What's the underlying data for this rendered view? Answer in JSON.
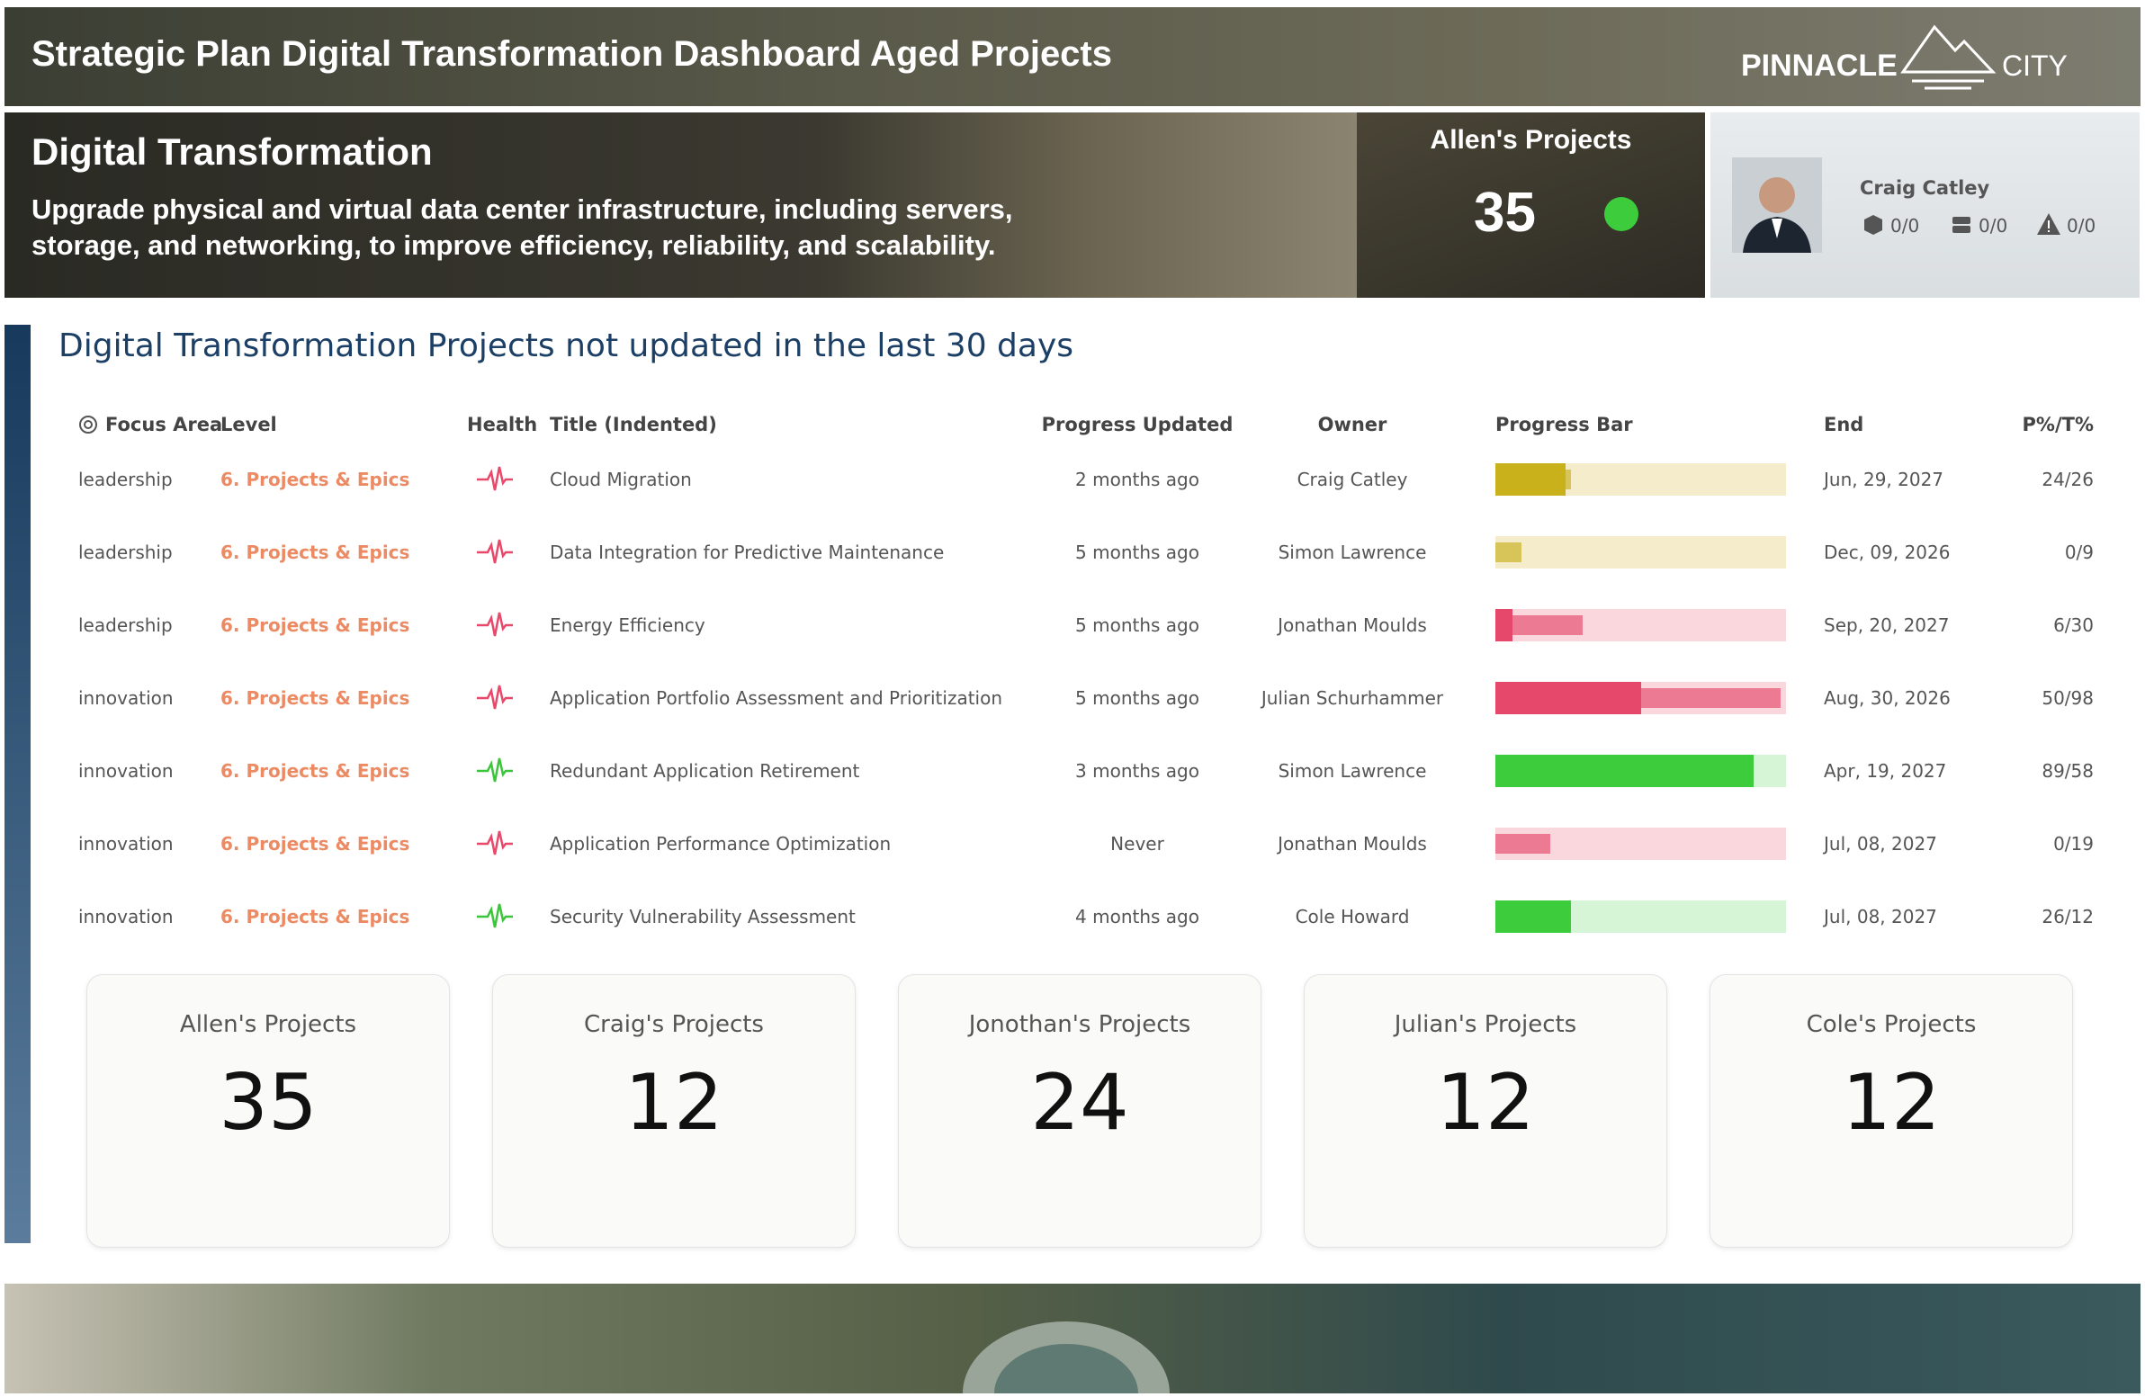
{
  "header": {
    "title": "Strategic Plan Digital Transformation Dashboard Aged Projects",
    "logo_main": "PINNACLE",
    "logo_sub": "CITY"
  },
  "banner": {
    "title": "Digital Transformation",
    "description": "Upgrade physical and virtual data center infrastructure, including servers, storage, and networking, to improve efficiency, reliability, and scalability.",
    "projects_label": "Allen's Projects",
    "projects_count": 35,
    "status_color": "#3ccc3c"
  },
  "profile": {
    "name": "Craig Catley",
    "stats": [
      "0/0",
      "0/0",
      "0/0"
    ]
  },
  "table": {
    "title": "Digital Transformation Projects not updated in the last 30 days",
    "columns": [
      "Focus Area",
      "Level",
      "Health",
      "Title (Indented)",
      "Progress Updated",
      "Owner",
      "Progress Bar",
      "End",
      "P%/T%"
    ],
    "progress_range": [
      0,
      100
    ],
    "rows": [
      {
        "focus_area": "leadership",
        "level": "6. Projects & Epics",
        "health_color": "#e8486a",
        "title": "Cloud Migration",
        "progress_updated": "2 months ago",
        "owner": "Craig Catley",
        "bar_color": "#c9b11c",
        "track_color": "#f4eccb",
        "progress": 24,
        "target": 26,
        "end": "Jun, 29, 2027",
        "pt": "24/26"
      },
      {
        "focus_area": "leadership",
        "level": "6. Projects & Epics",
        "health_color": "#e8486a",
        "title": "Data Integration for Predictive Maintenance",
        "progress_updated": "5 months ago",
        "owner": "Simon Lawrence",
        "bar_color": "#c9b11c",
        "track_color": "#f4eccb",
        "progress": 0,
        "target": 9,
        "end": "Dec, 09, 2026",
        "pt": "0/9"
      },
      {
        "focus_area": "leadership",
        "level": "6. Projects & Epics",
        "health_color": "#e8486a",
        "title": "Energy Efficiency",
        "progress_updated": "5 months ago",
        "owner": "Jonathan Moulds",
        "bar_color": "#e5486a",
        "track_color": "#fad6dd",
        "progress": 6,
        "target": 30,
        "end": "Sep, 20, 2027",
        "pt": "6/30"
      },
      {
        "focus_area": "innovation",
        "level": "6. Projects & Epics",
        "health_color": "#e8486a",
        "title": "Application Portfolio Assessment and Prioritization",
        "progress_updated": "5 months ago",
        "owner": "Julian Schurhammer",
        "bar_color": "#e5486a",
        "track_color": "#fad6dd",
        "progress": 50,
        "target": 98,
        "end": "Aug, 30, 2026",
        "pt": "50/98"
      },
      {
        "focus_area": "innovation",
        "level": "6. Projects & Epics",
        "health_color": "#3cc43c",
        "title": "Redundant Application Retirement",
        "progress_updated": "3 months ago",
        "owner": "Simon Lawrence",
        "bar_color": "#3ccc3c",
        "track_color": "#d6f5d6",
        "progress": 89,
        "target": 58,
        "end": "Apr, 19, 2027",
        "pt": "89/58"
      },
      {
        "focus_area": "innovation",
        "level": "6. Projects & Epics",
        "health_color": "#e8486a",
        "title": "Application Performance Optimization",
        "progress_updated": "Never",
        "owner": "Jonathan Moulds",
        "bar_color": "#e5486a",
        "track_color": "#fad6dd",
        "progress": 0,
        "target": 19,
        "end": "Jul, 08, 2027",
        "pt": "0/19"
      },
      {
        "focus_area": "innovation",
        "level": "6. Projects & Epics",
        "health_color": "#3cc43c",
        "title": "Security Vulnerability Assessment",
        "progress_updated": "4 months ago",
        "owner": "Cole Howard",
        "bar_color": "#3ccc3c",
        "track_color": "#d6f5d6",
        "progress": 26,
        "target": 12,
        "end": "Jul, 08, 2027",
        "pt": "26/12"
      }
    ]
  },
  "cards": [
    {
      "label": "Allen's Projects",
      "value": 35
    },
    {
      "label": "Craig's Projects",
      "value": 12
    },
    {
      "label": "Jonothan's Projects",
      "value": 24
    },
    {
      "label": "Julian's Projects",
      "value": 12
    },
    {
      "label": "Cole's Projects",
      "value": 12
    }
  ]
}
